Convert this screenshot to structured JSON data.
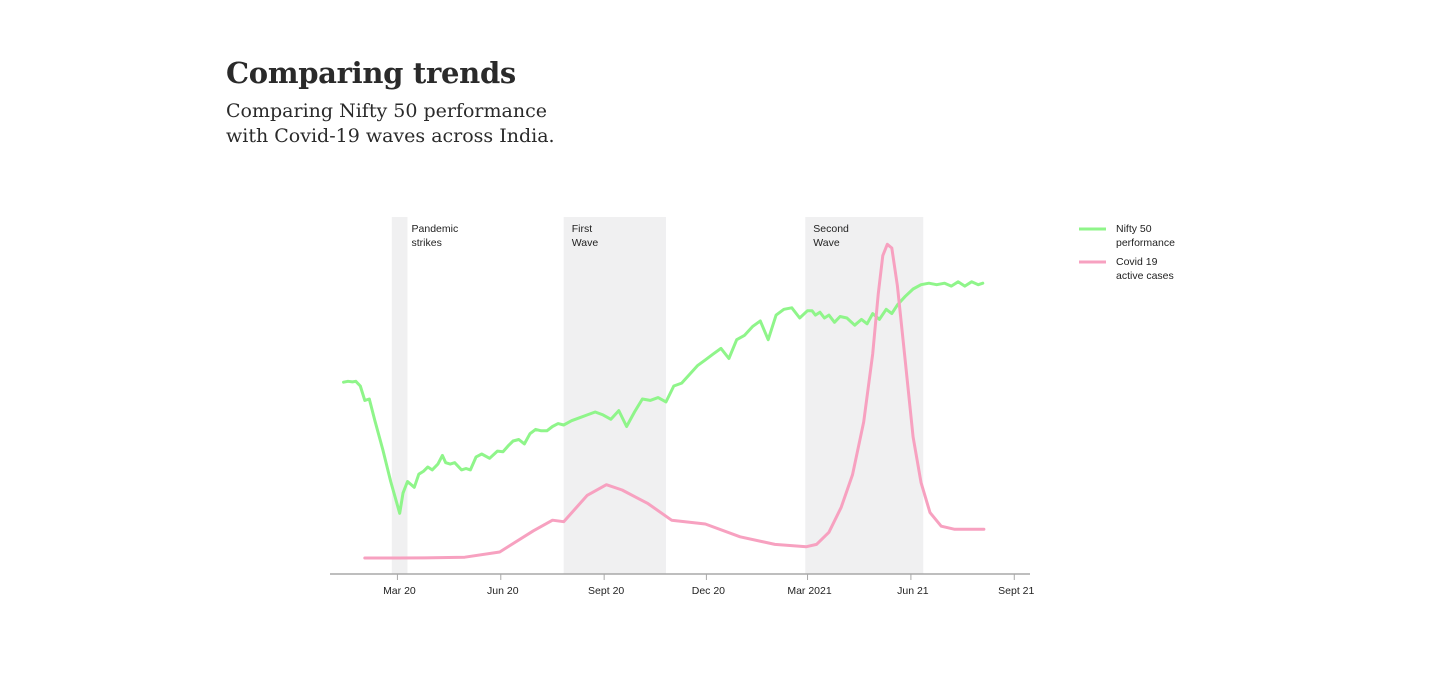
{
  "header": {
    "title": "Comparing trends",
    "subtitle_lines": [
      "Comparing Nifty 50 performance",
      "with Covid-19 waves across India."
    ]
  },
  "chart_data": {
    "type": "line",
    "x_ticks": [
      "Mar 20",
      "Jun 20",
      "Sept 20",
      "Dec 20",
      "Mar 2021",
      "Jun 21",
      "Sept 21"
    ],
    "xlim": [
      "2020-01-01",
      "2021-09-15"
    ],
    "y_axis_visible": false,
    "grid": false,
    "legend_position": "top-right",
    "bands": [
      {
        "label_lines": [
          "Pandemic",
          "strikes"
        ],
        "start": "2020-02-25",
        "end": "2020-03-10"
      },
      {
        "label_lines": [
          "First",
          "Wave"
        ],
        "start": "2020-07-27",
        "end": "2020-10-26"
      },
      {
        "label_lines": [
          "Second",
          "Wave"
        ],
        "start": "2021-02-27",
        "end": "2021-06-12"
      }
    ],
    "series": [
      {
        "name_lines": [
          "Nifty 50",
          "performance"
        ],
        "color": "#8ff58a",
        "ylim": [
          7500,
          16000
        ],
        "points": [
          [
            "2020-01-13",
            12330
          ],
          [
            "2020-01-17",
            12360
          ],
          [
            "2020-01-21",
            12340
          ],
          [
            "2020-01-24",
            12360
          ],
          [
            "2020-01-28",
            12200
          ],
          [
            "2020-02-01",
            11700
          ],
          [
            "2020-02-05",
            11750
          ],
          [
            "2020-02-10",
            11000
          ],
          [
            "2020-02-17",
            10000
          ],
          [
            "2020-02-24",
            8900
          ],
          [
            "2020-03-03",
            7800
          ],
          [
            "2020-03-06",
            8500
          ],
          [
            "2020-03-10",
            8900
          ],
          [
            "2020-03-16",
            8700
          ],
          [
            "2020-03-20",
            9150
          ],
          [
            "2020-03-24",
            9250
          ],
          [
            "2020-03-28",
            9400
          ],
          [
            "2020-04-01",
            9300
          ],
          [
            "2020-04-06",
            9500
          ],
          [
            "2020-04-10",
            9800
          ],
          [
            "2020-04-13",
            9550
          ],
          [
            "2020-04-17",
            9500
          ],
          [
            "2020-04-21",
            9550
          ],
          [
            "2020-04-27",
            9300
          ],
          [
            "2020-05-01",
            9350
          ],
          [
            "2020-05-05",
            9300
          ],
          [
            "2020-05-10",
            9750
          ],
          [
            "2020-05-15",
            9850
          ],
          [
            "2020-05-22",
            9700
          ],
          [
            "2020-05-29",
            9950
          ],
          [
            "2020-06-03",
            9930
          ],
          [
            "2020-06-08",
            10150
          ],
          [
            "2020-06-12",
            10300
          ],
          [
            "2020-06-17",
            10350
          ],
          [
            "2020-06-22",
            10200
          ],
          [
            "2020-06-27",
            10550
          ],
          [
            "2020-07-02",
            10700
          ],
          [
            "2020-07-07",
            10650
          ],
          [
            "2020-07-12",
            10650
          ],
          [
            "2020-07-17",
            10800
          ],
          [
            "2020-07-22",
            10900
          ],
          [
            "2020-07-27",
            10850
          ],
          [
            "2020-08-03",
            11000
          ],
          [
            "2020-08-10",
            11100
          ],
          [
            "2020-08-17",
            11200
          ],
          [
            "2020-08-24",
            11300
          ],
          [
            "2020-08-31",
            11200
          ],
          [
            "2020-09-07",
            11050
          ],
          [
            "2020-09-14",
            11350
          ],
          [
            "2020-09-21",
            10800
          ],
          [
            "2020-09-28",
            11300
          ],
          [
            "2020-10-05",
            11750
          ],
          [
            "2020-10-12",
            11700
          ],
          [
            "2020-10-19",
            11800
          ],
          [
            "2020-10-26",
            11650
          ],
          [
            "2020-11-02",
            12200
          ],
          [
            "2020-11-09",
            12300
          ],
          [
            "2020-11-16",
            12600
          ],
          [
            "2020-11-23",
            12900
          ],
          [
            "2020-11-30",
            13100
          ],
          [
            "2020-12-07",
            13300
          ],
          [
            "2020-12-14",
            13500
          ],
          [
            "2020-12-21",
            13150
          ],
          [
            "2020-12-28",
            13800
          ],
          [
            "2021-01-04",
            13950
          ],
          [
            "2021-01-11",
            14250
          ],
          [
            "2021-01-18",
            14450
          ],
          [
            "2021-01-25",
            13800
          ],
          [
            "2021-02-01",
            14650
          ],
          [
            "2021-02-08",
            14850
          ],
          [
            "2021-02-15",
            14900
          ],
          [
            "2021-02-22",
            14550
          ],
          [
            "2021-03-01",
            14800
          ],
          [
            "2021-03-05",
            14800
          ],
          [
            "2021-03-08",
            14650
          ],
          [
            "2021-03-12",
            14750
          ],
          [
            "2021-03-16",
            14550
          ],
          [
            "2021-03-20",
            14650
          ],
          [
            "2021-03-25",
            14400
          ],
          [
            "2021-03-30",
            14600
          ],
          [
            "2021-04-05",
            14550
          ],
          [
            "2021-04-12",
            14300
          ],
          [
            "2021-04-18",
            14500
          ],
          [
            "2021-04-23",
            14350
          ],
          [
            "2021-04-28",
            14700
          ],
          [
            "2021-05-04",
            14500
          ],
          [
            "2021-05-10",
            14850
          ],
          [
            "2021-05-15",
            14700
          ],
          [
            "2021-05-20",
            15000
          ],
          [
            "2021-05-27",
            15300
          ],
          [
            "2021-06-03",
            15550
          ],
          [
            "2021-06-10",
            15700
          ],
          [
            "2021-06-17",
            15750
          ],
          [
            "2021-06-24",
            15700
          ],
          [
            "2021-07-01",
            15750
          ],
          [
            "2021-07-07",
            15650
          ],
          [
            "2021-07-13",
            15800
          ],
          [
            "2021-07-19",
            15650
          ],
          [
            "2021-07-25",
            15800
          ],
          [
            "2021-07-31",
            15700
          ],
          [
            "2021-08-04",
            15750
          ]
        ]
      },
      {
        "name_lines": [
          "Covid 19",
          "active cases"
        ],
        "color": "#f7a1c0",
        "ylim": [
          0,
          500000
        ],
        "points": [
          [
            "2020-02-01",
            0
          ],
          [
            "2020-03-01",
            0
          ],
          [
            "2020-03-25",
            100
          ],
          [
            "2020-04-30",
            1000
          ],
          [
            "2020-05-31",
            8000
          ],
          [
            "2020-06-30",
            36000
          ],
          [
            "2020-07-17",
            50000
          ],
          [
            "2020-07-27",
            48000
          ],
          [
            "2020-08-17",
            83000
          ],
          [
            "2020-09-03",
            97000
          ],
          [
            "2020-09-17",
            90000
          ],
          [
            "2020-10-10",
            72000
          ],
          [
            "2020-10-31",
            50000
          ],
          [
            "2020-11-30",
            45000
          ],
          [
            "2020-12-31",
            28000
          ],
          [
            "2021-01-31",
            18000
          ],
          [
            "2021-02-28",
            15000
          ],
          [
            "2021-03-09",
            18000
          ],
          [
            "2021-03-20",
            34000
          ],
          [
            "2021-03-31",
            67000
          ],
          [
            "2021-04-10",
            110000
          ],
          [
            "2021-04-20",
            180000
          ],
          [
            "2021-04-28",
            270000
          ],
          [
            "2021-05-03",
            350000
          ],
          [
            "2021-05-07",
            400000
          ],
          [
            "2021-05-11",
            415000
          ],
          [
            "2021-05-15",
            410000
          ],
          [
            "2021-05-20",
            360000
          ],
          [
            "2021-05-27",
            260000
          ],
          [
            "2021-06-03",
            160000
          ],
          [
            "2021-06-10",
            100000
          ],
          [
            "2021-06-18",
            60000
          ],
          [
            "2021-06-28",
            42000
          ],
          [
            "2021-07-10",
            38000
          ],
          [
            "2021-08-01",
            38000
          ],
          [
            "2021-08-05",
            38000
          ]
        ]
      }
    ]
  }
}
